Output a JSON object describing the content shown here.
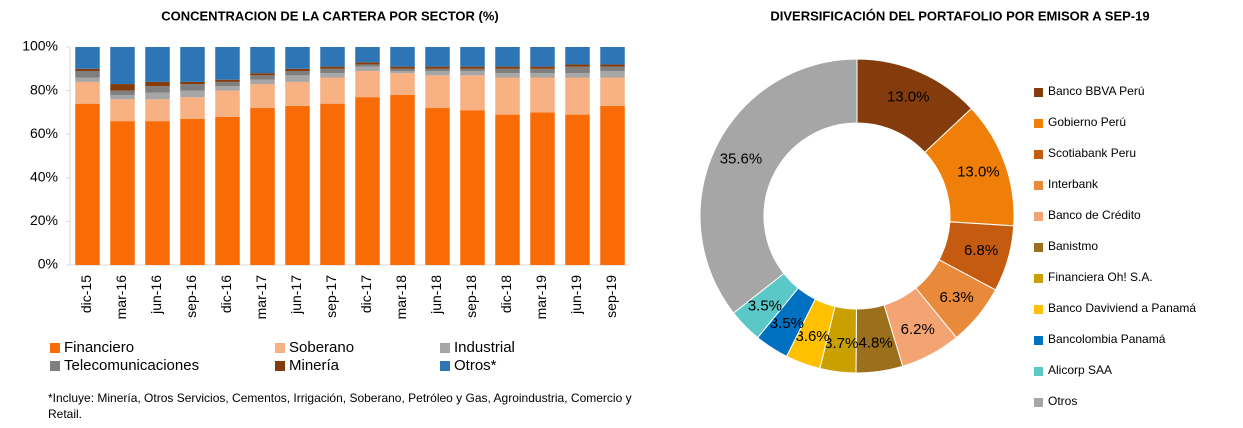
{
  "chart_data": [
    {
      "type": "stacked_bar",
      "title": "CONCENTRACION DE LA CARTERA POR SECTOR (%)",
      "categories": [
        "dic-15",
        "mar-16",
        "jun-16",
        "sep-16",
        "dic-16",
        "mar-17",
        "jun-17",
        "sep-17",
        "dic-17",
        "mar-18",
        "jun-18",
        "sep-18",
        "dic-18",
        "mar-19",
        "jun-19",
        "sep-19"
      ],
      "series": [
        {
          "name": "Financiero",
          "color": "#f96b07",
          "values": [
            74,
            66,
            66,
            67,
            68,
            72,
            73,
            74,
            77,
            78,
            72,
            71,
            69,
            70,
            69,
            73
          ]
        },
        {
          "name": "Soberano",
          "color": "#f7b183",
          "values": [
            10,
            10,
            10,
            10,
            12,
            11,
            11,
            12,
            12,
            10,
            15,
            16,
            17,
            16,
            17,
            13
          ]
        },
        {
          "name": "Industrial",
          "color": "#a6a6a6",
          "values": [
            2,
            2,
            3,
            3,
            2,
            2,
            3,
            2,
            2,
            1,
            2,
            2,
            2,
            2,
            2,
            3
          ]
        },
        {
          "name": "Telecomunicaciones",
          "color": "#7f7f7f",
          "values": [
            3,
            2,
            3,
            3,
            2,
            2,
            2,
            2,
            1,
            1,
            1,
            1,
            2,
            2,
            3,
            2
          ]
        },
        {
          "name": "Minería",
          "color": "#843c0c",
          "values": [
            1,
            3,
            2,
            1,
            1,
            1,
            1,
            1,
            1,
            1,
            1,
            1,
            1,
            1,
            1,
            1
          ]
        },
        {
          "name": "Otros*",
          "color": "#2e75b6",
          "values": [
            10,
            17,
            16,
            16,
            15,
            12,
            10,
            9,
            7,
            9,
            9,
            9,
            9,
            9,
            8,
            8
          ]
        }
      ],
      "ylim": [
        0,
        100
      ],
      "yticks": [
        {
          "value": 0,
          "label": "0%"
        },
        {
          "value": 20,
          "label": "20%"
        },
        {
          "value": 40,
          "label": "40%"
        },
        {
          "value": 60,
          "label": "60%"
        },
        {
          "value": 80,
          "label": "80%"
        },
        {
          "value": 100,
          "label": "100%"
        }
      ],
      "annotation": "*Incluye: Minería, Otros Servicios, Cementos, Irrigación, Soberano, Petróleo y Gas, Agroindustria, Comercio y Retail."
    },
    {
      "type": "donut",
      "title": "DIVERSIFICACIÓN DEL PORTAFOLIO POR EMISOR A SEP-19",
      "categories": [
        "Banco BBVA Perú",
        "Gobierno Perú",
        "Scotiabank Peru",
        "Interbank",
        "Banco de Crédito",
        "Banistmo",
        "Financiera Oh! S.A.",
        "Banco Daviviend a Panamá",
        "Bancolombia Panamá",
        "Alicorp SAA",
        "Otros"
      ],
      "values": [
        13.0,
        13.0,
        6.8,
        6.3,
        6.2,
        4.8,
        3.7,
        3.6,
        3.5,
        3.5,
        35.6
      ],
      "value_labels": [
        "13.0%",
        "13.0%",
        "6.8%",
        "6.3%",
        "6.2%",
        "4.8%",
        "3.7%",
        "3.6%",
        "3.5%",
        "3.5%",
        "35.6%"
      ],
      "colors": [
        "#843c0c",
        "#f07f09",
        "#c55a11",
        "#e98a3a",
        "#f4a373",
        "#9c6f1c",
        "#c9a000",
        "#ffc000",
        "#0070c0",
        "#5bc8c8",
        "#a6a6a6"
      ]
    }
  ]
}
